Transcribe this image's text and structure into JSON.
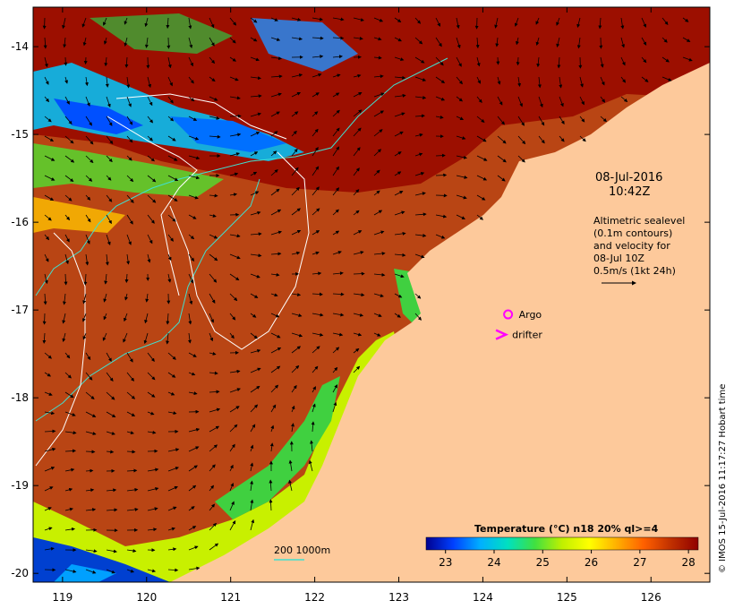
{
  "chart_data": {
    "type": "heatmap",
    "x_ticks": [
      "119",
      "120",
      "121",
      "122",
      "123",
      "124",
      "125",
      "126"
    ],
    "y_ticks": [
      "-14",
      "-15",
      "-16",
      "-17",
      "-18",
      "-19",
      "-20"
    ],
    "xlim": [
      118.65,
      126.7
    ],
    "ylim": [
      -20.1,
      -13.55
    ],
    "timestamp_date": "08-Jul-2016",
    "timestamp_time": "10:42Z",
    "altimetry_lines": [
      "Altimetric sealevel",
      "(0.1m contours)",
      "and velocity for",
      "08-Jul 10Z",
      "0.5m/s (1kt 24h)"
    ],
    "legend_argo": "Argo",
    "legend_drifter": "drifter",
    "argo_position": [
      124.3,
      -17.05
    ],
    "drifter_position": [
      124.22,
      -17.28
    ],
    "bathymetry_label": "200  1000m",
    "colorbar": {
      "title": "Temperature (°C) n18 20% ql>=4",
      "min": 22.6,
      "max": 28.2,
      "ticks": [
        "23",
        "24",
        "25",
        "26",
        "27",
        "28"
      ],
      "colors": [
        "#000090",
        "#0040ff",
        "#00b0ff",
        "#00e0c0",
        "#40e040",
        "#c0f000",
        "#ffff00",
        "#ffb000",
        "#ff6000",
        "#c03000",
        "#900000"
      ]
    },
    "credit": "© IMOS 15-Jul-2016 11:17:27 Hobart time"
  },
  "colors": {
    "land": "#fdc99b",
    "sst_warm": "#b94514",
    "sst_hot": "#9c0f00",
    "contour_white": "#ffffff",
    "contour_cyan": "#40e0d0",
    "argo_marker": "#ff00ff"
  }
}
